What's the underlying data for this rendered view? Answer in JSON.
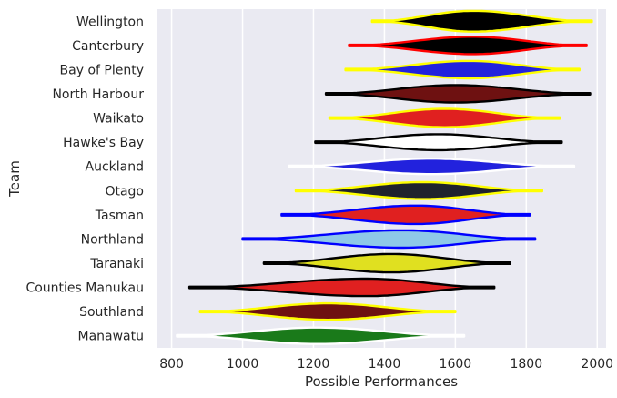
{
  "chart_data": {
    "type": "violin",
    "title": "",
    "xlabel": "Possible Performances",
    "ylabel": "Team",
    "xlim": [
      760,
      2025
    ],
    "xticks": [
      800,
      1000,
      1200,
      1400,
      1600,
      1800,
      2000
    ],
    "grid": "vertical",
    "background": "#EAEAF2",
    "series": [
      {
        "team": "Wellington",
        "min": 1365,
        "max": 1985,
        "median": 1650,
        "width": 0.43,
        "fill": "#000000",
        "edge": "#FFFF00"
      },
      {
        "team": "Canterbury",
        "min": 1300,
        "max": 1970,
        "median": 1650,
        "width": 0.36,
        "fill": "#000000",
        "edge": "#FF0000"
      },
      {
        "team": "Bay of Plenty",
        "min": 1290,
        "max": 1950,
        "median": 1640,
        "width": 0.36,
        "fill": "#2222DD",
        "edge": "#FFFF00"
      },
      {
        "team": "North Harbour",
        "min": 1235,
        "max": 1980,
        "median": 1600,
        "width": 0.36,
        "fill": "#6E1111",
        "edge": "#000000"
      },
      {
        "team": "Waikato",
        "min": 1245,
        "max": 1895,
        "median": 1570,
        "width": 0.38,
        "fill": "#E02020",
        "edge": "#FFFF00"
      },
      {
        "team": "Hawke's Bay",
        "min": 1205,
        "max": 1900,
        "median": 1550,
        "width": 0.33,
        "fill": "#FFFFFF",
        "edge": "#000000"
      },
      {
        "team": "Auckland",
        "min": 1130,
        "max": 1935,
        "median": 1530,
        "width": 0.32,
        "fill": "#2222DD",
        "edge": "#FFFFFF"
      },
      {
        "team": "Otago",
        "min": 1150,
        "max": 1845,
        "median": 1510,
        "width": 0.35,
        "fill": "#20232D",
        "edge": "#FFFF00"
      },
      {
        "team": "Tasman",
        "min": 1110,
        "max": 1810,
        "median": 1490,
        "width": 0.38,
        "fill": "#E02020",
        "edge": "#0000FF"
      },
      {
        "team": "Northland",
        "min": 1000,
        "max": 1825,
        "median": 1450,
        "width": 0.36,
        "fill": "#8EC8E8",
        "edge": "#0000FF"
      },
      {
        "team": "Taranaki",
        "min": 1060,
        "max": 1755,
        "median": 1420,
        "width": 0.38,
        "fill": "#E0E020",
        "edge": "#000000"
      },
      {
        "team": "Counties Manukau",
        "min": 850,
        "max": 1710,
        "median": 1350,
        "width": 0.36,
        "fill": "#E02020",
        "edge": "#000000"
      },
      {
        "team": "Southland",
        "min": 880,
        "max": 1600,
        "median": 1240,
        "width": 0.34,
        "fill": "#6E1111",
        "edge": "#FFFF00"
      },
      {
        "team": "Manawatu",
        "min": 815,
        "max": 1625,
        "median": 1210,
        "width": 0.34,
        "fill": "#1A7A1A",
        "edge": "#FFFFFF"
      }
    ]
  }
}
